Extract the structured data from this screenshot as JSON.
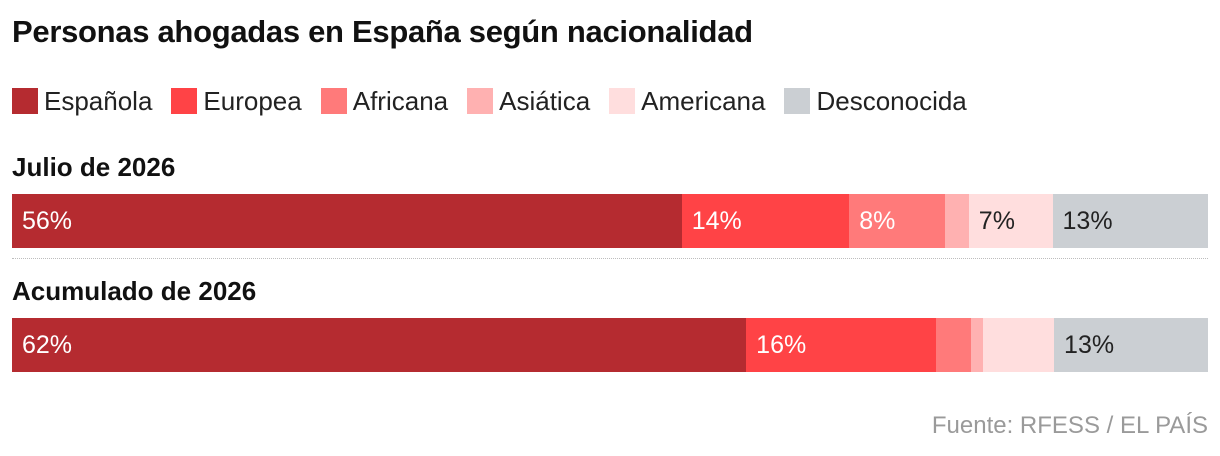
{
  "title": "Personas ahogadas en España según nacionalidad",
  "source": "Fuente: RFESS / EL PAÍS",
  "colors": {
    "espanola": "#b52b30",
    "europea": "#ff4346",
    "africana": "#ff7a7a",
    "asiatica": "#ffb1b1",
    "americana": "#ffdede",
    "desconocida": "#cbcfd3"
  },
  "chart_data": {
    "type": "bar",
    "orientation": "horizontal-stacked-100",
    "unit": "%",
    "categories": [
      "Julio de 2026",
      "Acumulado de 2026"
    ],
    "xlim": [
      0,
      100
    ],
    "legend": "top",
    "grid": false,
    "series": [
      {
        "name": "Española",
        "color": "#b52b30",
        "values": [
          56,
          62
        ],
        "labels": [
          "56%",
          "62%"
        ]
      },
      {
        "name": "Europea",
        "color": "#ff4346",
        "values": [
          14,
          16
        ],
        "labels": [
          "14%",
          "16%"
        ]
      },
      {
        "name": "Africana",
        "color": "#ff7a7a",
        "values": [
          8,
          3
        ],
        "labels": [
          "8%",
          ""
        ]
      },
      {
        "name": "Asiática",
        "color": "#ffb1b1",
        "values": [
          2,
          1
        ],
        "labels": [
          "",
          ""
        ]
      },
      {
        "name": "Americana",
        "color": "#ffdede",
        "values": [
          7,
          6
        ],
        "labels": [
          "7%",
          ""
        ]
      },
      {
        "name": "Desconocida",
        "color": "#cbcfd3",
        "values": [
          13,
          13
        ],
        "labels": [
          "13%",
          "13%"
        ]
      }
    ]
  }
}
